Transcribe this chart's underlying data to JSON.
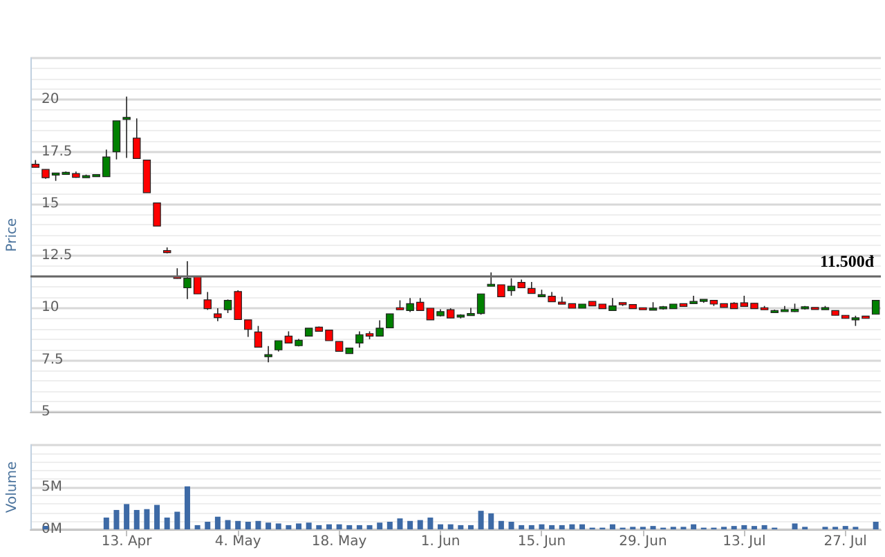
{
  "chart_data": [
    {
      "type": "candlestick",
      "ylabel": "Price",
      "ohlc": [
        [
          16.9,
          17.1,
          16.75,
          16.75
        ],
        [
          16.65,
          16.65,
          16.2,
          16.25
        ],
        [
          16.4,
          16.45,
          16.1,
          16.45
        ],
        [
          16.45,
          16.55,
          16.4,
          16.47
        ],
        [
          16.45,
          16.55,
          16.25,
          16.27
        ],
        [
          16.25,
          16.4,
          16.25,
          16.35
        ],
        [
          16.35,
          16.4,
          16.3,
          16.35
        ],
        [
          16.3,
          17.6,
          16.3,
          17.25
        ],
        [
          17.5,
          18.98,
          17.13,
          18.98
        ],
        [
          19.1,
          20.15,
          17.2,
          19.1
        ],
        [
          18.15,
          19.1,
          17.17,
          17.17
        ],
        [
          17.1,
          17.1,
          15.53,
          15.53
        ],
        [
          15.04,
          15.04,
          13.93,
          13.93
        ],
        [
          12.75,
          12.9,
          12.62,
          12.65
        ],
        [
          11.5,
          11.9,
          11.4,
          11.42
        ],
        [
          10.96,
          12.24,
          10.42,
          11.42
        ],
        [
          11.5,
          11.5,
          10.67,
          10.67
        ],
        [
          10.38,
          10.76,
          9.9,
          9.96
        ],
        [
          9.71,
          9.98,
          9.36,
          9.53
        ],
        [
          9.91,
          10.4,
          9.75,
          10.36
        ],
        [
          10.78,
          10.84,
          9.44,
          9.44
        ],
        [
          9.42,
          9.42,
          8.6,
          8.96
        ],
        [
          8.84,
          9.13,
          8.11,
          8.11
        ],
        [
          7.65,
          8.16,
          7.38,
          7.75
        ],
        [
          7.98,
          8.42,
          7.9,
          8.42
        ],
        [
          8.64,
          8.87,
          8.31,
          8.31
        ],
        [
          8.18,
          8.5,
          8.15,
          8.44
        ],
        [
          8.64,
          9.02,
          8.64,
          9.02
        ],
        [
          9.07,
          9.1,
          8.87,
          8.87
        ],
        [
          8.93,
          8.93,
          8.42,
          8.42
        ],
        [
          8.38,
          8.38,
          7.91,
          7.91
        ],
        [
          7.8,
          8.07,
          7.8,
          8.07
        ],
        [
          8.31,
          8.87,
          8.09,
          8.71
        ],
        [
          8.76,
          8.87,
          8.49,
          8.64
        ],
        [
          8.64,
          9.4,
          8.64,
          9.02
        ],
        [
          9.04,
          9.71,
          9.04,
          9.71
        ],
        [
          10.0,
          10.36,
          9.91,
          9.91
        ],
        [
          9.87,
          10.47,
          9.8,
          10.2
        ],
        [
          10.27,
          10.47,
          9.87,
          9.87
        ],
        [
          9.98,
          9.98,
          9.42,
          9.42
        ],
        [
          9.62,
          9.93,
          9.58,
          9.82
        ],
        [
          9.91,
          9.98,
          9.51,
          9.51
        ],
        [
          9.58,
          9.69,
          9.49,
          9.62
        ],
        [
          9.64,
          10.0,
          9.64,
          9.71
        ],
        [
          9.73,
          10.67,
          9.67,
          10.67
        ],
        [
          11.04,
          11.7,
          11.04,
          11.13
        ],
        [
          11.11,
          11.11,
          10.53,
          10.53
        ],
        [
          10.82,
          11.42,
          10.58,
          11.04
        ],
        [
          11.22,
          11.36,
          10.96,
          10.96
        ],
        [
          10.93,
          11.24,
          10.69,
          10.69
        ],
        [
          10.58,
          10.87,
          10.58,
          10.58
        ],
        [
          10.56,
          10.76,
          10.29,
          10.29
        ],
        [
          10.27,
          10.53,
          10.18,
          10.18
        ],
        [
          10.2,
          10.2,
          9.98,
          9.98
        ],
        [
          9.98,
          10.18,
          9.98,
          10.18
        ],
        [
          10.31,
          10.31,
          10.09,
          10.09
        ],
        [
          10.18,
          10.18,
          9.96,
          9.96
        ],
        [
          9.87,
          10.47,
          9.87,
          10.09
        ],
        [
          10.24,
          10.24,
          10.09,
          10.16
        ],
        [
          10.16,
          10.16,
          9.96,
          9.96
        ],
        [
          10.0,
          10.0,
          9.91,
          9.91
        ],
        [
          9.91,
          10.27,
          9.91,
          9.96
        ],
        [
          10.0,
          10.09,
          9.91,
          10.0
        ],
        [
          9.96,
          10.18,
          9.96,
          10.18
        ],
        [
          10.2,
          10.2,
          10.07,
          10.07
        ],
        [
          10.2,
          10.58,
          10.2,
          10.31
        ],
        [
          10.36,
          10.36,
          10.24,
          10.36
        ],
        [
          10.36,
          10.36,
          10.09,
          10.18
        ],
        [
          10.2,
          10.2,
          10.02,
          10.02
        ],
        [
          10.22,
          10.27,
          9.96,
          9.96
        ],
        [
          10.24,
          10.58,
          10.07,
          10.07
        ],
        [
          10.22,
          10.22,
          9.96,
          9.96
        ],
        [
          10.0,
          10.09,
          9.91,
          9.91
        ],
        [
          9.82,
          9.91,
          9.82,
          9.82
        ],
        [
          9.82,
          10.09,
          9.82,
          9.91
        ],
        [
          9.82,
          10.2,
          9.8,
          9.93
        ],
        [
          10.0,
          10.09,
          9.91,
          10.0
        ],
        [
          10.0,
          10.0,
          9.93,
          9.93
        ],
        [
          9.96,
          10.09,
          9.96,
          9.96
        ],
        [
          9.87,
          9.87,
          9.64,
          9.64
        ],
        [
          9.64,
          9.64,
          9.49,
          9.49
        ],
        [
          9.47,
          9.62,
          9.13,
          9.47
        ],
        [
          9.6,
          9.6,
          9.49,
          9.49
        ],
        [
          9.69,
          10.36,
          9.69,
          10.36
        ]
      ],
      "ylim": [
        5,
        22
      ],
      "yticks": [
        5,
        7.5,
        10,
        12.5,
        15,
        17.5,
        20
      ],
      "grid": "y",
      "tick_labels": "y",
      "ref_lines": [
        {
          "axis": "y",
          "value": 11.5,
          "label": "11.500đ",
          "color": "#666666"
        }
      ]
    },
    {
      "type": "bar",
      "ylabel": "Volume",
      "categories": [
        null,
        null,
        null,
        null,
        null,
        null,
        null,
        null,
        null,
        "13. Apr",
        null,
        null,
        null,
        null,
        null,
        null,
        null,
        null,
        null,
        null,
        "4. May",
        null,
        null,
        null,
        null,
        null,
        null,
        null,
        null,
        null,
        "18. May",
        null,
        null,
        null,
        null,
        null,
        null,
        null,
        null,
        null,
        "1. Jun",
        null,
        null,
        null,
        null,
        null,
        null,
        null,
        null,
        null,
        "15. Jun",
        null,
        null,
        null,
        null,
        null,
        null,
        null,
        null,
        null,
        "29. Jun",
        null,
        null,
        null,
        null,
        null,
        null,
        null,
        null,
        null,
        "13. Jul",
        null,
        null,
        null,
        null,
        null,
        null,
        null,
        null,
        null,
        "27. Jul",
        null,
        null,
        null
      ],
      "values": [
        null,
        0.4,
        null,
        null,
        null,
        null,
        null,
        1.4,
        2.3,
        3.0,
        2.3,
        2.4,
        2.9,
        1.4,
        2.1,
        5.1,
        0.5,
        0.9,
        1.5,
        1.1,
        1.0,
        0.9,
        1.0,
        0.8,
        0.7,
        0.5,
        0.7,
        0.8,
        0.5,
        0.6,
        0.6,
        0.5,
        0.5,
        0.5,
        0.8,
        0.9,
        1.3,
        1.0,
        1.1,
        1.4,
        0.6,
        0.6,
        0.5,
        0.5,
        2.2,
        1.9,
        1.0,
        0.9,
        0.5,
        0.5,
        0.6,
        0.5,
        0.5,
        0.6,
        0.6,
        0.2,
        0.2,
        0.6,
        0.2,
        0.3,
        0.3,
        0.4,
        0.2,
        0.3,
        0.3,
        0.6,
        0.2,
        0.2,
        0.3,
        0.4,
        0.5,
        0.4,
        0.5,
        0.2,
        null,
        0.7,
        0.3,
        null,
        0.3,
        0.3,
        0.4,
        0.3,
        null,
        0.9
      ],
      "color": "#3d6aa6",
      "ylim": [
        0,
        10
      ],
      "yticks": [
        {
          "value": 0,
          "label": "0M"
        },
        {
          "value": 5,
          "label": "5M"
        },
        {
          "value": 10,
          "label": null
        }
      ],
      "grid": "y"
    }
  ]
}
